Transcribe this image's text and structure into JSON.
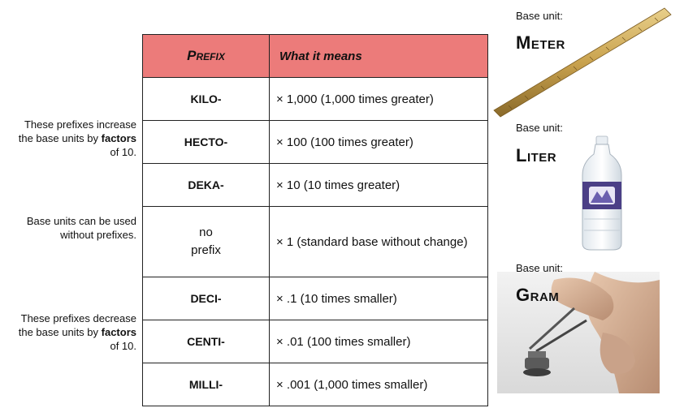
{
  "notes": {
    "increase": {
      "pre": "These prefixes increase the base units by ",
      "bold": "factors",
      "post": " of 10."
    },
    "base": "Base units can be used without prefixes.",
    "decrease": {
      "pre": "These prefixes decrease the base units by ",
      "bold": "factors",
      "post": " of 10."
    }
  },
  "table": {
    "headers": {
      "prefix": "Prefix",
      "meaning": "What it means"
    },
    "rows": [
      {
        "prefix": "KILO-",
        "meaning": "× 1,000 (1,000 times greater)"
      },
      {
        "prefix": "HECTO-",
        "meaning": "× 100 (100 times greater)"
      },
      {
        "prefix": "DEKA-",
        "meaning": "× 10 (10 times greater)"
      },
      {
        "prefix_line1": "no",
        "prefix_line2": "prefix",
        "meaning": "× 1 (standard base without change)"
      },
      {
        "prefix": "DECI-",
        "meaning": "× .1 (10 times smaller)"
      },
      {
        "prefix": "CENTI-",
        "meaning": "× .01 (100 times smaller)"
      },
      {
        "prefix": "MILLI-",
        "meaning": "×  .001 (1,000 times smaller)"
      }
    ],
    "header_color": "#ec7b7a"
  },
  "base_units": [
    {
      "label": "Base unit:",
      "name": "Meter",
      "picture": "meter-stick-image"
    },
    {
      "label": "Base unit:",
      "name": "Liter",
      "picture": "water-bottle-image"
    },
    {
      "label": "Base unit:",
      "name": "Gram",
      "picture": "gram-weight-image"
    }
  ]
}
